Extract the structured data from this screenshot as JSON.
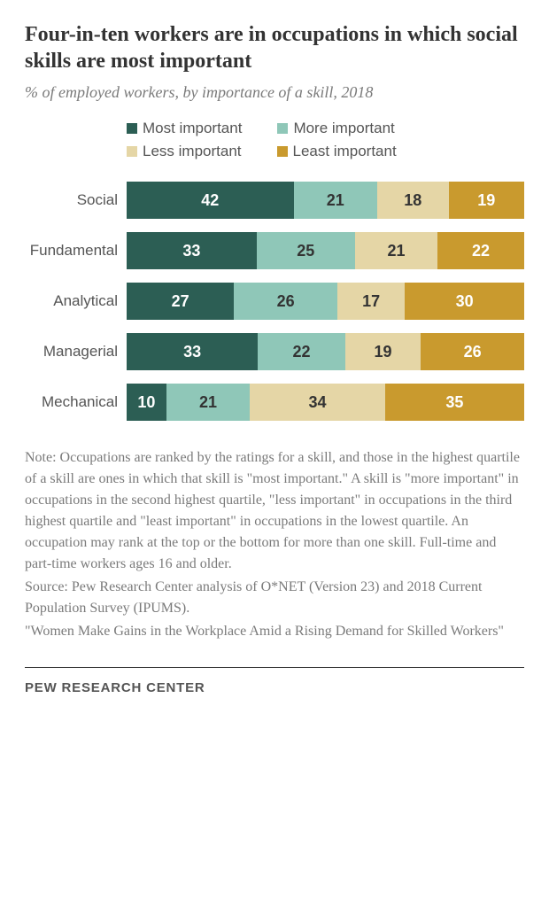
{
  "title": "Four-in-ten workers are in occupations in which social skills are most important",
  "subtitle": "% of employed workers, by importance of a skill, 2018",
  "chart": {
    "type": "stacked-bar-horizontal",
    "legend": [
      {
        "label": "Most important",
        "color": "#2c5e54"
      },
      {
        "label": "More important",
        "color": "#8fc7b8"
      },
      {
        "label": "Less important",
        "color": "#e5d6a6"
      },
      {
        "label": "Least important",
        "color": "#c99a2e"
      }
    ],
    "value_fontsize": 18,
    "label_fontsize": 17,
    "legend_fontsize": 17,
    "rows": [
      {
        "label": "Social",
        "values": [
          42,
          21,
          18,
          19
        ]
      },
      {
        "label": "Fundamental",
        "values": [
          33,
          25,
          21,
          22
        ]
      },
      {
        "label": "Analytical",
        "values": [
          27,
          26,
          17,
          30
        ]
      },
      {
        "label": "Managerial",
        "values": [
          33,
          22,
          19,
          26
        ]
      },
      {
        "label": "Mechanical",
        "values": [
          10,
          21,
          34,
          35
        ]
      }
    ],
    "text_colors": [
      "dark",
      "light",
      "light",
      "dark"
    ]
  },
  "note": {
    "fontsize": 16,
    "lines": [
      "Note: Occupations are ranked by the ratings for a skill, and those in the highest quartile of a skill are ones in which that skill is \"most important.\" A skill is \"more important\" in occupations in the second highest quartile, \"less important\" in occupations in the third highest quartile and \"least important\" in occupations in the lowest quartile. An occupation may rank at the top or the bottom for more than one skill. Full-time and part-time workers ages 16 and older.",
      "Source: Pew Research Center analysis of O*NET (Version 23) and 2018 Current Population Survey (IPUMS).",
      "\"Women Make Gains in the Workplace Amid a Rising Demand for Skilled Workers\""
    ]
  },
  "footer": "PEW RESEARCH CENTER",
  "title_fontsize": 24,
  "subtitle_fontsize": 18,
  "footer_fontsize": 15
}
